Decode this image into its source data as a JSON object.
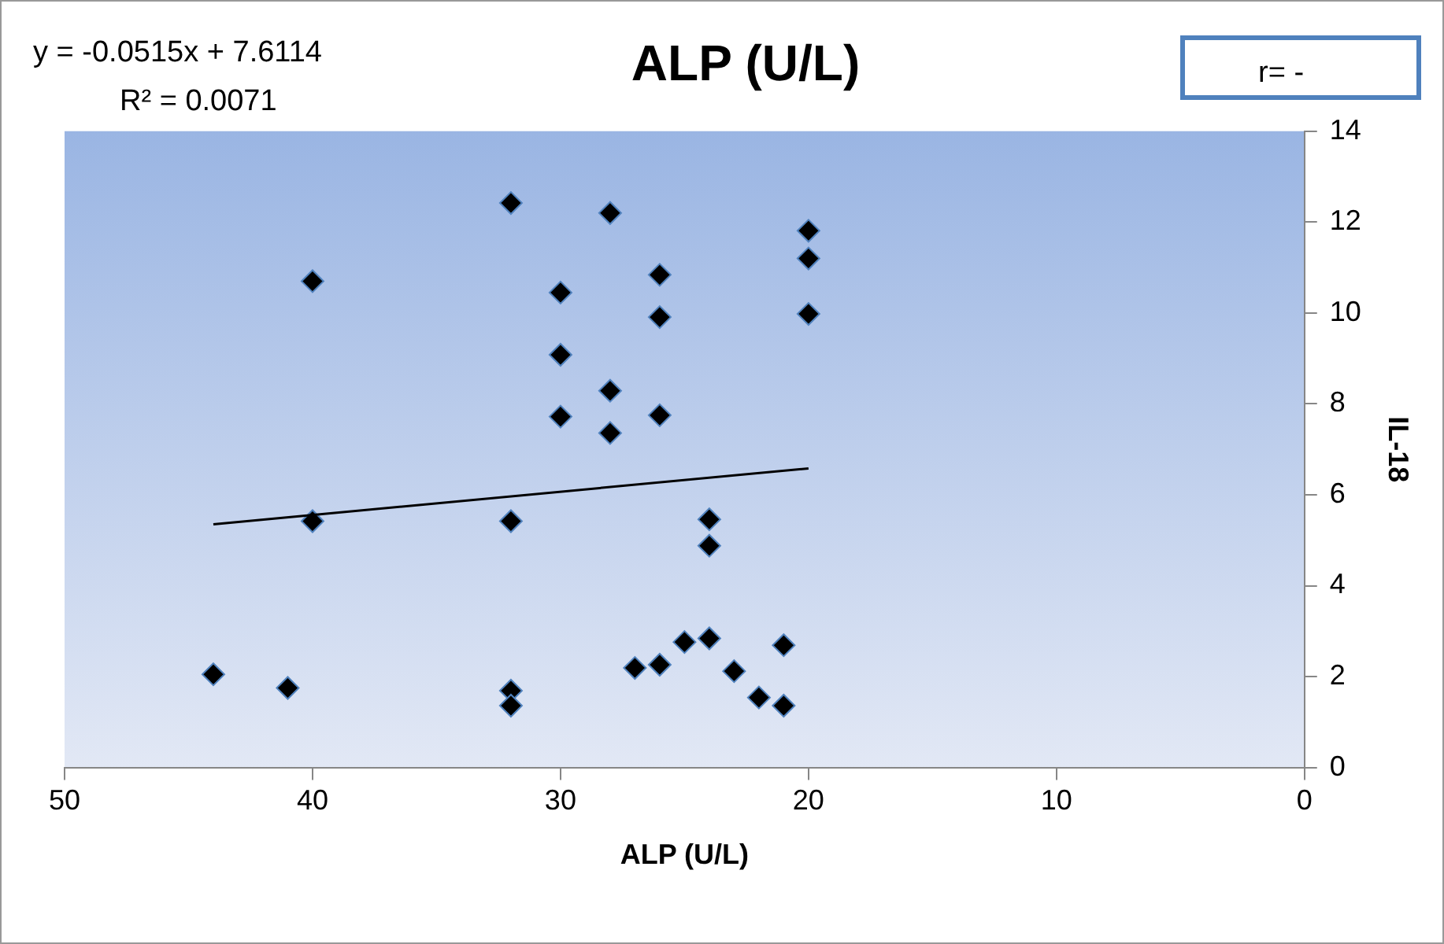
{
  "chart_data": {
    "type": "scatter",
    "title": "ALP (U/L)",
    "xlabel": "ALP (U/L)",
    "ylabel": "IL-18",
    "annotations": [
      "y = -0.0515x + 7.6114",
      "R² = 0.0071",
      "r= -"
    ],
    "xlim": [
      50,
      0
    ],
    "xticks": [
      50,
      40,
      30,
      20,
      10,
      0
    ],
    "ylim": [
      0,
      14
    ],
    "yticks": [
      0,
      2,
      4,
      6,
      8,
      10,
      12,
      14
    ],
    "grid": false,
    "legend": false,
    "marker": "diamond",
    "series": [
      {
        "type": "scatter",
        "color": "#000000",
        "x": [
          44,
          41,
          40,
          40,
          32,
          32,
          32,
          32,
          30,
          30,
          30,
          28,
          28,
          28,
          26,
          26,
          26,
          26,
          27,
          25,
          24,
          24,
          24,
          23,
          22,
          21,
          21,
          20,
          20,
          20
        ],
        "values": [
          2.05,
          1.75,
          10.7,
          5.42,
          12.42,
          5.42,
          1.69,
          1.36,
          10.45,
          9.08,
          7.72,
          12.2,
          8.29,
          7.36,
          10.84,
          9.91,
          7.75,
          2.26,
          2.19,
          2.76,
          2.84,
          5.46,
          4.88,
          2.12,
          1.54,
          1.36,
          2.69,
          11.81,
          11.2,
          9.98
        ]
      },
      {
        "type": "line",
        "color": "#000000",
        "marker": "none",
        "line_style": "solid",
        "x": [
          44,
          20
        ],
        "values": [
          5.35,
          6.58
        ]
      }
    ]
  }
}
